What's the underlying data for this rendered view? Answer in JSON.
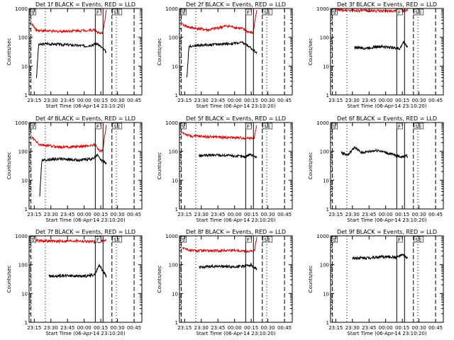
{
  "figure": {
    "background": "#ffffff",
    "event_color": "#000000",
    "lld_color": "#dd0000"
  },
  "chart_data": [
    {
      "type": "line",
      "det": "1f",
      "title": "Det 1f BLACK = Events, RED = LLD",
      "xlabel": "Start Time (06-Apr-14 23:10:20)",
      "ylabel": "Counts/sec",
      "x_ticks": [
        "23:15",
        "23:30",
        "23:45",
        "00:00",
        "00:15",
        "00:30",
        "00:45"
      ],
      "y_ticks": [
        "1",
        "10",
        "100",
        "1000"
      ],
      "xlim": [
        "23:10:20",
        "00:52"
      ],
      "ylim": [
        1,
        1000
      ],
      "y_scale": "log",
      "flags": [
        "S",
        "F",
        "SE"
      ],
      "markers": {
        "solid": [
          "00:10",
          "00:17"
        ],
        "dashed": [
          "23:12",
          "00:25",
          "00:45"
        ],
        "dotted": [
          "23:25",
          "00:29"
        ]
      },
      "series": [
        {
          "name": "Events",
          "start": "23:17",
          "end": "00:20",
          "level": 60,
          "shape": [
            [
              0,
              4
            ],
            [
              0.03,
              55
            ],
            [
              0.15,
              60
            ],
            [
              0.45,
              55
            ],
            [
              0.7,
              50
            ],
            [
              0.87,
              60
            ],
            [
              0.93,
              45
            ],
            [
              1,
              30
            ]
          ]
        },
        {
          "name": "LLD",
          "start": "23:13",
          "end": "00:20",
          "level": 200,
          "shape": [
            [
              0,
              300
            ],
            [
              0.05,
              180
            ],
            [
              0.3,
              160
            ],
            [
              0.6,
              170
            ],
            [
              0.85,
              180
            ],
            [
              0.9,
              140
            ],
            [
              0.95,
              130
            ],
            [
              1,
              900
            ]
          ]
        }
      ]
    },
    {
      "type": "line",
      "det": "2f",
      "title": "Det 2f BLACK = Events, RED = LLD",
      "xlabel": "Start Time (06-Apr-14 23:10:20)",
      "ylabel": "Counts/sec",
      "x_ticks": [
        "23:15",
        "23:30",
        "23:45",
        "00:00",
        "00:15",
        "00:30",
        "00:45"
      ],
      "y_ticks": [
        "1",
        "10",
        "100",
        "1000"
      ],
      "xlim": [
        "23:10:20",
        "00:52"
      ],
      "ylim": [
        1,
        1000
      ],
      "y_scale": "log",
      "flags": [
        "S",
        "F",
        "SE"
      ],
      "markers": {
        "solid": [
          "00:10",
          "00:17"
        ],
        "dashed": [
          "23:12",
          "00:25",
          "00:45"
        ],
        "dotted": [
          "23:25",
          "00:29"
        ]
      },
      "series": [
        {
          "name": "Events",
          "start": "23:17",
          "end": "00:20",
          "level": 55,
          "shape": [
            [
              0,
              4
            ],
            [
              0.03,
              50
            ],
            [
              0.3,
              55
            ],
            [
              0.6,
              60
            ],
            [
              0.8,
              65
            ],
            [
              0.88,
              50
            ],
            [
              0.93,
              40
            ],
            [
              1,
              30
            ]
          ]
        },
        {
          "name": "LLD",
          "start": "23:13",
          "end": "00:20",
          "level": 200,
          "shape": [
            [
              0,
              280
            ],
            [
              0.1,
              220
            ],
            [
              0.35,
              180
            ],
            [
              0.6,
              250
            ],
            [
              0.8,
              200
            ],
            [
              0.9,
              150
            ],
            [
              0.95,
              140
            ],
            [
              1,
              900
            ]
          ]
        }
      ]
    },
    {
      "type": "line",
      "det": "3f",
      "title": "Det 3f BLACK = Events, RED = LLD",
      "xlabel": "Start Time (06-Apr-14 23:10:20)",
      "ylabel": "Counts/sec",
      "x_ticks": [
        "23:15",
        "23:30",
        "23:45",
        "00:00",
        "00:15",
        "00:30",
        "00:45"
      ],
      "y_ticks": [
        "1",
        "10",
        "100",
        "1000"
      ],
      "xlim": [
        "23:10:20",
        "00:52"
      ],
      "ylim": [
        1,
        1000
      ],
      "y_scale": "log",
      "flags": [
        "S",
        "F",
        "SE"
      ],
      "markers": {
        "solid": [
          "00:10",
          "00:17"
        ],
        "dashed": [
          "23:12",
          "00:25",
          "00:45"
        ],
        "dotted": [
          "23:25",
          "00:29"
        ]
      },
      "series": [
        {
          "name": "Events",
          "start": "23:32",
          "end": "00:20",
          "level": 45,
          "shape": [
            [
              0,
              45
            ],
            [
              0.2,
              42
            ],
            [
              0.45,
              48
            ],
            [
              0.7,
              45
            ],
            [
              0.85,
              40
            ],
            [
              0.92,
              70
            ],
            [
              1,
              45
            ]
          ]
        },
        {
          "name": "LLD",
          "start": "23:13",
          "end": "00:20",
          "level": 850,
          "shape": [
            [
              0,
              900
            ],
            [
              0.3,
              850
            ],
            [
              0.7,
              820
            ],
            [
              1,
              860
            ]
          ]
        }
      ]
    },
    {
      "type": "line",
      "det": "4f",
      "title": "Det 4f BLACK = Events, RED = LLD",
      "xlabel": "Start Time (06-Apr-14 23:10:20)",
      "ylabel": "Counts/sec",
      "x_ticks": [
        "23:15",
        "23:30",
        "23:45",
        "00:00",
        "00:15",
        "00:30",
        "00:45"
      ],
      "y_ticks": [
        "1",
        "10",
        "100",
        "1000"
      ],
      "xlim": [
        "23:10:20",
        "00:52"
      ],
      "ylim": [
        1,
        1000
      ],
      "y_scale": "log",
      "flags": [
        "S",
        "F",
        "SE"
      ],
      "markers": {
        "solid": [
          "00:10",
          "00:17"
        ],
        "dashed": [
          "23:12",
          "00:25",
          "00:45"
        ],
        "dotted": [
          "23:25",
          "00:29"
        ]
      },
      "series": [
        {
          "name": "Events",
          "start": "23:20",
          "end": "00:20",
          "level": 55,
          "shape": [
            [
              0,
              3
            ],
            [
              0.03,
              50
            ],
            [
              0.3,
              55
            ],
            [
              0.6,
              50
            ],
            [
              0.8,
              55
            ],
            [
              0.87,
              80
            ],
            [
              0.92,
              50
            ],
            [
              1,
              40
            ]
          ]
        },
        {
          "name": "LLD",
          "start": "23:13",
          "end": "00:20",
          "level": 150,
          "shape": [
            [
              0,
              300
            ],
            [
              0.1,
              170
            ],
            [
              0.4,
              140
            ],
            [
              0.7,
              150
            ],
            [
              0.85,
              170
            ],
            [
              0.9,
              110
            ],
            [
              0.95,
              100
            ],
            [
              1,
              900
            ]
          ]
        }
      ]
    },
    {
      "type": "line",
      "det": "5f",
      "title": "Det 5f BLACK = Events, RED = LLD",
      "xlabel": "Start Time (06-Apr-14 23:10:20)",
      "ylabel": "Counts/sec",
      "x_ticks": [
        "23:15",
        "23:30",
        "23:45",
        "00:00",
        "00:15",
        "00:30",
        "00:45"
      ],
      "y_ticks": [
        "1",
        "10",
        "100",
        "1000"
      ],
      "xlim": [
        "23:10:20",
        "00:52"
      ],
      "ylim": [
        1,
        1000
      ],
      "y_scale": "log",
      "flags": [
        "S",
        "F",
        "SE"
      ],
      "markers": {
        "solid": [
          "00:10",
          "00:17"
        ],
        "dashed": [
          "23:12",
          "00:25",
          "00:45"
        ],
        "dotted": [
          "23:25",
          "00:29"
        ]
      },
      "series": [
        {
          "name": "Events",
          "start": "23:28",
          "end": "00:20",
          "level": 75,
          "shape": [
            [
              0,
              70
            ],
            [
              0.3,
              75
            ],
            [
              0.6,
              70
            ],
            [
              0.8,
              65
            ],
            [
              0.88,
              80
            ],
            [
              0.95,
              70
            ],
            [
              1,
              60
            ]
          ]
        },
        {
          "name": "LLD",
          "start": "23:13",
          "end": "00:20",
          "level": 300,
          "shape": [
            [
              0,
              450
            ],
            [
              0.1,
              340
            ],
            [
              0.4,
              320
            ],
            [
              0.7,
              300
            ],
            [
              0.9,
              290
            ],
            [
              0.97,
              300
            ],
            [
              1,
              900
            ]
          ]
        }
      ]
    },
    {
      "type": "line",
      "det": "6f",
      "title": "Det 6f BLACK = Events, RED = LLD",
      "xlabel": "Start Time (06-Apr-14 23:10:20)",
      "ylabel": "Counts/sec",
      "x_ticks": [
        "23:15",
        "23:30",
        "23:45",
        "00:00",
        "00:15",
        "00:30",
        "00:45"
      ],
      "y_ticks": [
        "1",
        "10",
        "100",
        "1000"
      ],
      "xlim": [
        "23:10:20",
        "00:52"
      ],
      "ylim": [
        1,
        1000
      ],
      "y_scale": "log",
      "flags": [
        "S",
        "F",
        "SE"
      ],
      "markers": {
        "solid": [
          "00:10",
          "00:17"
        ],
        "dashed": [
          "23:12",
          "00:25",
          "00:45"
        ],
        "dotted": [
          "23:25",
          "00:29"
        ]
      },
      "series": [
        {
          "name": "Events",
          "start": "23:20",
          "end": "00:20",
          "level": 80,
          "shape": [
            [
              0,
              90
            ],
            [
              0.1,
              75
            ],
            [
              0.2,
              140
            ],
            [
              0.3,
              90
            ],
            [
              0.55,
              110
            ],
            [
              0.75,
              80
            ],
            [
              0.9,
              65
            ],
            [
              1,
              70
            ]
          ]
        }
      ]
    },
    {
      "type": "line",
      "det": "7f",
      "title": "Det 7f BLACK = Events, RED = LLD",
      "xlabel": "Start Time (06-Apr-14 23:10:20)",
      "ylabel": "Counts/sec",
      "x_ticks": [
        "23:15",
        "23:30",
        "23:45",
        "00:00",
        "00:15",
        "00:30",
        "00:45"
      ],
      "y_ticks": [
        "1",
        "10",
        "100",
        "1000"
      ],
      "xlim": [
        "23:10:20",
        "00:52"
      ],
      "ylim": [
        1,
        1000
      ],
      "y_scale": "log",
      "flags": [
        "S",
        "F",
        "SE"
      ],
      "markers": {
        "solid": [
          "00:10",
          "00:17"
        ],
        "dashed": [
          "23:12",
          "00:25",
          "00:45"
        ],
        "dotted": [
          "23:25",
          "00:29"
        ]
      },
      "series": [
        {
          "name": "Events",
          "start": "23:28",
          "end": "00:20",
          "level": 45,
          "shape": [
            [
              0,
              40
            ],
            [
              0.3,
              42
            ],
            [
              0.6,
              40
            ],
            [
              0.8,
              45
            ],
            [
              0.88,
              100
            ],
            [
              0.94,
              60
            ],
            [
              1,
              40
            ]
          ]
        },
        {
          "name": "LLD",
          "start": "23:13",
          "end": "00:20",
          "level": 650,
          "shape": [
            [
              0,
              700
            ],
            [
              0.3,
              650
            ],
            [
              0.6,
              680
            ],
            [
              0.85,
              620
            ],
            [
              1,
              700
            ]
          ]
        }
      ]
    },
    {
      "type": "line",
      "det": "8f",
      "title": "Det 8f BLACK = Events, RED = LLD",
      "xlabel": "Start Time (06-Apr-14 23:10:20)",
      "ylabel": "Counts/sec",
      "x_ticks": [
        "23:15",
        "23:30",
        "23:45",
        "00:00",
        "00:15",
        "00:30",
        "00:45"
      ],
      "y_ticks": [
        "1",
        "10",
        "100",
        "1000"
      ],
      "xlim": [
        "23:10:20",
        "00:52"
      ],
      "ylim": [
        1,
        1000
      ],
      "y_scale": "log",
      "flags": [
        "S",
        "F",
        "SE"
      ],
      "markers": {
        "solid": [
          "00:10",
          "00:17"
        ],
        "dashed": [
          "23:12",
          "00:25",
          "00:45"
        ],
        "dotted": [
          "23:25",
          "00:29"
        ]
      },
      "series": [
        {
          "name": "Events",
          "start": "23:28",
          "end": "00:20",
          "level": 85,
          "shape": [
            [
              0,
              80
            ],
            [
              0.3,
              90
            ],
            [
              0.6,
              85
            ],
            [
              0.8,
              90
            ],
            [
              0.9,
              100
            ],
            [
              0.95,
              80
            ],
            [
              1,
              70
            ]
          ]
        },
        {
          "name": "LLD",
          "start": "23:13",
          "end": "00:20",
          "level": 300,
          "shape": [
            [
              0,
              400
            ],
            [
              0.1,
              310
            ],
            [
              0.4,
              300
            ],
            [
              0.7,
              320
            ],
            [
              0.9,
              290
            ],
            [
              0.97,
              300
            ],
            [
              1,
              900
            ]
          ]
        }
      ]
    },
    {
      "type": "line",
      "det": "9f",
      "title": "Det 9f BLACK = Events, RED = LLD",
      "xlabel": "Start Time (06-Apr-14 23:10:20)",
      "ylabel": "Counts/sec",
      "x_ticks": [
        "23:15",
        "23:30",
        "23:45",
        "00:00",
        "00:15",
        "00:30",
        "00:45"
      ],
      "y_ticks": [
        "1",
        "10",
        "100",
        "1000"
      ],
      "xlim": [
        "23:10:20",
        "00:52"
      ],
      "ylim": [
        1,
        1000
      ],
      "y_scale": "log",
      "flags": [
        "S",
        "F",
        "SE"
      ],
      "markers": {
        "solid": [
          "00:10",
          "00:17"
        ],
        "dashed": [
          "23:12",
          "00:25",
          "00:45"
        ],
        "dotted": [
          "23:25",
          "00:29"
        ]
      },
      "series": [
        {
          "name": "Events",
          "start": "23:30",
          "end": "00:20",
          "level": 180,
          "shape": [
            [
              0,
              170
            ],
            [
              0.3,
              175
            ],
            [
              0.6,
              190
            ],
            [
              0.8,
              180
            ],
            [
              0.9,
              220
            ],
            [
              0.95,
              190
            ],
            [
              1,
              170
            ]
          ]
        }
      ]
    }
  ]
}
